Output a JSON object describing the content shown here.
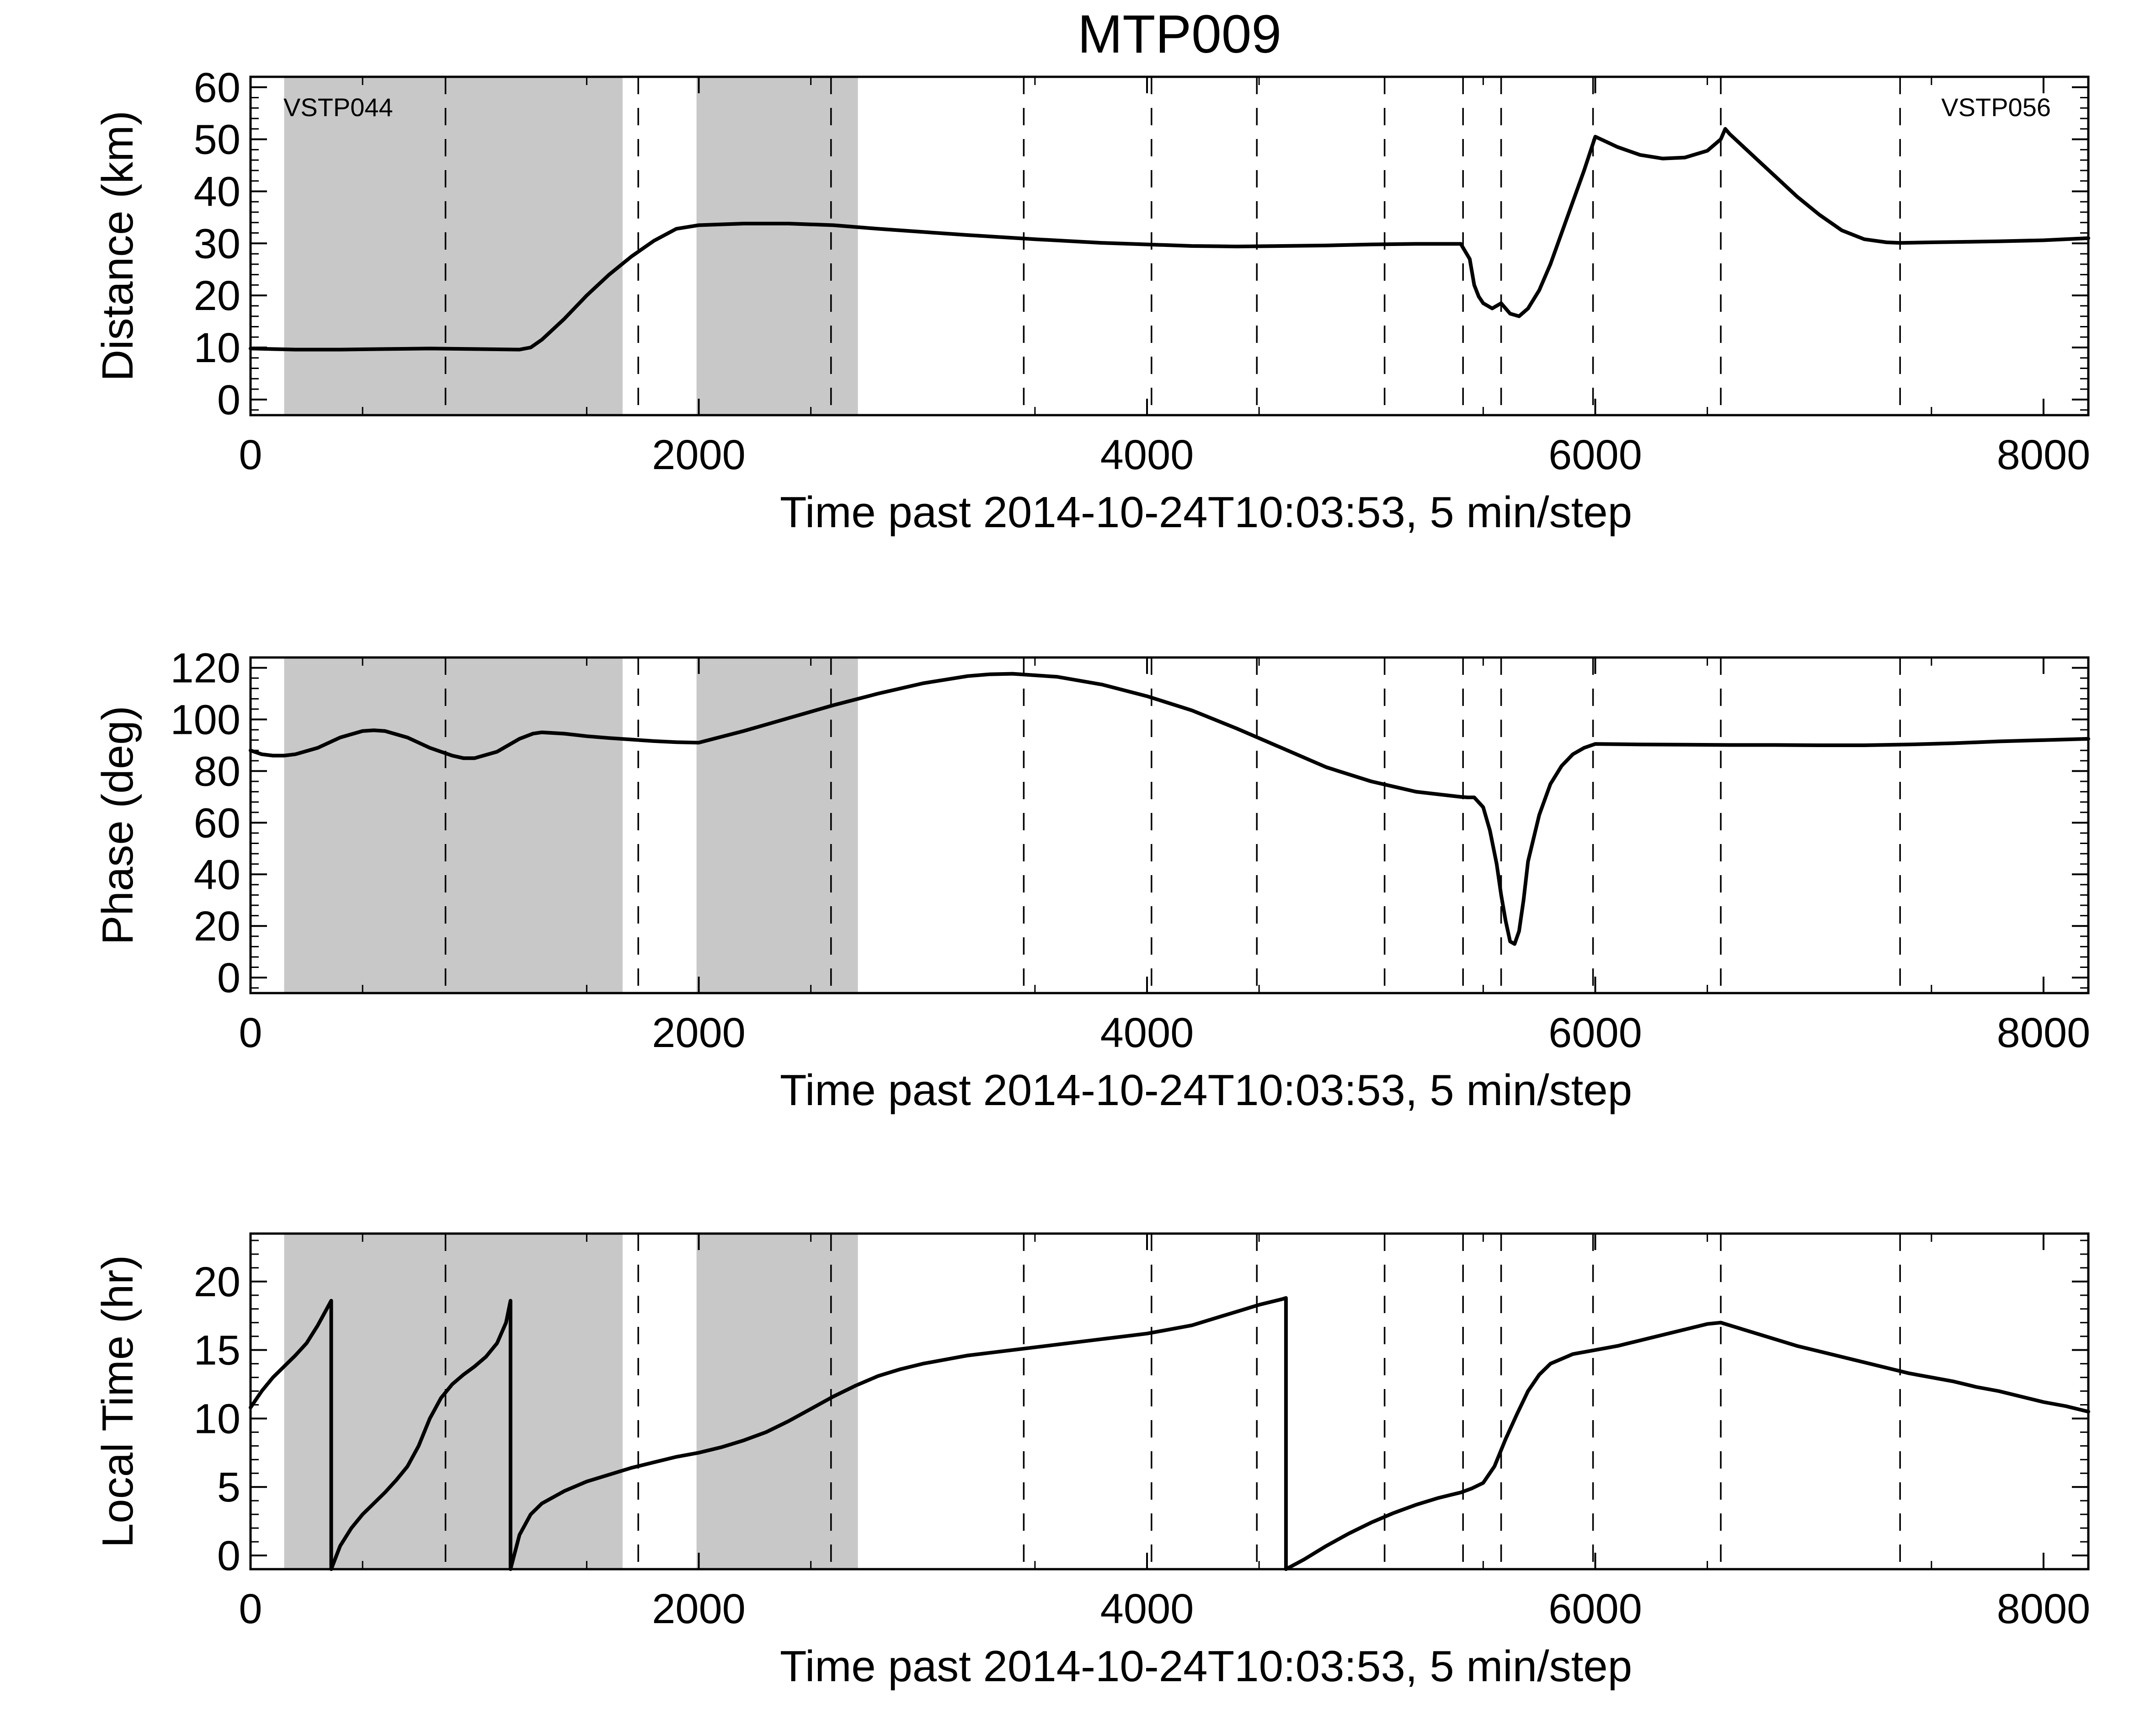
{
  "figure_title": "MTP009",
  "colors": {
    "line": "#000000",
    "shade": "#c8c8c8",
    "dashed": "#000000",
    "background": "#ffffff"
  },
  "chart_data": [
    {
      "type": "line",
      "title": "MTP009",
      "xlabel": "Time past 2014-10-24T10:03:53, 5 min/step",
      "ylabel": "Distance (km)",
      "xlim": [
        0,
        8200
      ],
      "ylim": [
        -3,
        62
      ],
      "x_ticks": [
        0,
        2000,
        4000,
        6000,
        8000
      ],
      "y_ticks": [
        0,
        10,
        20,
        30,
        40,
        50,
        60
      ],
      "annotations": [
        {
          "text": "VSTP044",
          "anchor": "top-left"
        },
        {
          "text": "VSTP056",
          "anchor": "top-right"
        }
      ],
      "shaded_regions": [
        [
          150,
          1660
        ],
        [
          1990,
          2710
        ]
      ],
      "dashed_lines": [
        870,
        1730,
        2590,
        3450,
        4020,
        4490,
        5060,
        5410,
        5580,
        5990,
        6560,
        7360
      ],
      "series": [
        {
          "name": "Distance",
          "x": [
            0,
            200,
            400,
            600,
            800,
            1000,
            1200,
            1250,
            1300,
            1400,
            1500,
            1600,
            1700,
            1800,
            1900,
            2000,
            2200,
            2400,
            2600,
            2800,
            3000,
            3200,
            3500,
            3800,
            4000,
            4200,
            4400,
            4600,
            4800,
            5000,
            5200,
            5400,
            5440,
            5460,
            5480,
            5500,
            5540,
            5580,
            5600,
            5620,
            5660,
            5700,
            5750,
            5800,
            5850,
            5900,
            5950,
            6000,
            6050,
            6100,
            6200,
            6300,
            6400,
            6500,
            6560,
            6580,
            6600,
            6700,
            6800,
            6900,
            7000,
            7100,
            7200,
            7300,
            7360,
            7500,
            7800,
            8000,
            8200
          ],
          "y": [
            9.8,
            9.6,
            9.6,
            9.7,
            9.8,
            9.7,
            9.6,
            10.0,
            11.5,
            15.5,
            20.0,
            24.0,
            27.5,
            30.5,
            32.8,
            33.5,
            33.8,
            33.8,
            33.5,
            32.8,
            32.2,
            31.6,
            30.8,
            30.1,
            29.8,
            29.5,
            29.4,
            29.5,
            29.6,
            29.8,
            29.9,
            29.9,
            27.0,
            22.0,
            19.8,
            18.5,
            17.5,
            18.5,
            17.5,
            16.5,
            16.0,
            17.5,
            21.0,
            26.0,
            32.0,
            38.0,
            44.0,
            50.5,
            49.5,
            48.5,
            47.0,
            46.3,
            46.5,
            47.8,
            50.0,
            52.0,
            51.0,
            47.0,
            43.0,
            39.0,
            35.5,
            32.5,
            30.8,
            30.2,
            30.1,
            30.2,
            30.4,
            30.6,
            31.0
          ]
        }
      ]
    },
    {
      "type": "line",
      "title": "",
      "xlabel": "Time past 2014-10-24T10:03:53, 5 min/step",
      "ylabel": "Phase (deg)",
      "xlim": [
        0,
        8200
      ],
      "ylim": [
        -6,
        124
      ],
      "x_ticks": [
        0,
        2000,
        4000,
        6000,
        8000
      ],
      "y_ticks": [
        0,
        20,
        40,
        60,
        80,
        100,
        120
      ],
      "shaded_regions": [
        [
          150,
          1660
        ],
        [
          1990,
          2710
        ]
      ],
      "dashed_lines": [
        870,
        1730,
        2590,
        3450,
        4020,
        4490,
        5060,
        5410,
        5580,
        5990,
        6560,
        7360
      ],
      "series": [
        {
          "name": "Phase",
          "x": [
            0,
            50,
            100,
            150,
            200,
            300,
            400,
            500,
            550,
            600,
            700,
            800,
            900,
            950,
            1000,
            1100,
            1200,
            1260,
            1300,
            1400,
            1500,
            1600,
            1700,
            1800,
            1900,
            2000,
            2200,
            2400,
            2600,
            2800,
            3000,
            3200,
            3300,
            3400,
            3600,
            3800,
            4000,
            4200,
            4400,
            4600,
            4800,
            5000,
            5200,
            5400,
            5430,
            5460,
            5500,
            5530,
            5560,
            5580,
            5600,
            5620,
            5640,
            5660,
            5680,
            5700,
            5750,
            5800,
            5850,
            5900,
            5950,
            6000,
            6200,
            6400,
            6600,
            6800,
            7000,
            7200,
            7400,
            7600,
            7800,
            8000,
            8200
          ],
          "y": [
            88,
            86.5,
            86,
            86,
            86.5,
            89,
            93,
            95.5,
            95.8,
            95.5,
            93,
            89,
            86,
            85,
            85,
            87.5,
            92.5,
            94.5,
            95,
            94.5,
            93.5,
            92.8,
            92.2,
            91.6,
            91.2,
            91,
            95.5,
            100.5,
            105.5,
            110,
            114,
            116.8,
            117.5,
            117.7,
            116.5,
            113.5,
            109,
            103.5,
            96.5,
            89,
            81.5,
            76,
            72,
            70,
            69.8,
            69.8,
            66,
            57,
            44,
            32,
            22,
            14,
            13,
            18,
            30,
            45,
            63,
            75,
            82,
            86.5,
            89,
            90.5,
            90.3,
            90.2,
            90.1,
            90.1,
            90,
            90,
            90.3,
            90.8,
            91.5,
            92,
            92.5
          ]
        }
      ]
    },
    {
      "type": "line",
      "title": "",
      "xlabel": "Time past 2014-10-24T10:03:53, 5 min/step",
      "ylabel": "Local Time (hr)",
      "xlim": [
        0,
        8200
      ],
      "ylim": [
        -1,
        23.5
      ],
      "x_ticks": [
        0,
        2000,
        4000,
        6000,
        8000
      ],
      "y_ticks": [
        0,
        5,
        10,
        15,
        20
      ],
      "shaded_regions": [
        [
          150,
          1660
        ],
        [
          1990,
          2710
        ]
      ],
      "dashed_lines": [
        870,
        1730,
        2590,
        3450,
        4020,
        4490,
        5060,
        5410,
        5580,
        5990,
        6560,
        7360
      ],
      "series": [
        {
          "name": "Local Time",
          "x": [
            0,
            50,
            100,
            150,
            200,
            250,
            300,
            340,
            360,
            360,
            400,
            450,
            500,
            550,
            600,
            650,
            700,
            750,
            800,
            850,
            900,
            950,
            1000,
            1050,
            1100,
            1140,
            1160,
            1160,
            1200,
            1250,
            1300,
            1400,
            1500,
            1600,
            1700,
            1800,
            1900,
            2000,
            2100,
            2200,
            2300,
            2400,
            2500,
            2600,
            2700,
            2800,
            2900,
            3000,
            3200,
            3400,
            3600,
            3800,
            4000,
            4200,
            4300,
            4400,
            4500,
            4600,
            4620,
            4620,
            4700,
            4800,
            4900,
            5000,
            5100,
            5200,
            5300,
            5400,
            5450,
            5500,
            5550,
            5600,
            5650,
            5700,
            5750,
            5800,
            5900,
            6000,
            6100,
            6200,
            6300,
            6400,
            6500,
            6560,
            6600,
            6700,
            6800,
            6900,
            7000,
            7100,
            7200,
            7300,
            7400,
            7500,
            7600,
            7700,
            7800,
            7900,
            8000,
            8100,
            8200
          ],
          "y": [
            10.8,
            12.0,
            13.0,
            13.8,
            14.6,
            15.5,
            16.8,
            18.0,
            18.6,
            -1.0,
            0.7,
            2.0,
            3.0,
            3.8,
            4.6,
            5.5,
            6.5,
            8.0,
            10.0,
            11.5,
            12.5,
            13.2,
            13.8,
            14.5,
            15.5,
            17.0,
            18.6,
            -1.0,
            1.5,
            3.0,
            3.8,
            4.7,
            5.4,
            5.9,
            6.4,
            6.8,
            7.2,
            7.5,
            7.9,
            8.4,
            9.0,
            9.8,
            10.7,
            11.6,
            12.4,
            13.1,
            13.6,
            14.0,
            14.6,
            15.0,
            15.4,
            15.8,
            16.2,
            16.8,
            17.3,
            17.8,
            18.3,
            18.7,
            18.8,
            -1.0,
            -0.3,
            0.7,
            1.6,
            2.4,
            3.1,
            3.7,
            4.2,
            4.6,
            4.9,
            5.3,
            6.5,
            8.5,
            10.3,
            12.0,
            13.2,
            14.0,
            14.7,
            15.0,
            15.3,
            15.7,
            16.1,
            16.5,
            16.9,
            17.0,
            16.8,
            16.3,
            15.8,
            15.3,
            14.9,
            14.5,
            14.1,
            13.7,
            13.3,
            13.0,
            12.7,
            12.3,
            12.0,
            11.6,
            11.2,
            10.9,
            10.5
          ]
        }
      ]
    }
  ]
}
